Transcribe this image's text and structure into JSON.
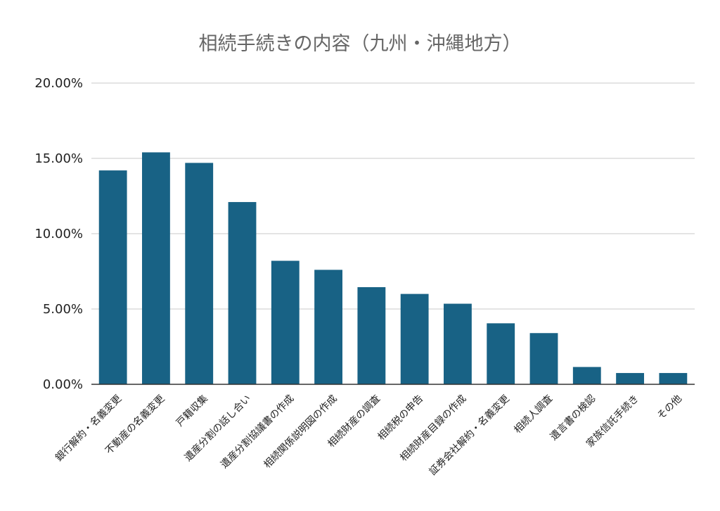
{
  "chart_data": {
    "type": "bar",
    "title": "相続手続きの内容（九州・沖縄地方）",
    "xlabel": "",
    "ylabel": "",
    "categories": [
      "銀行解約・名義変更",
      "不動産の名義変更",
      "戸籍収集",
      "遺産分割の話し合い",
      "遺産分割協議書の作成",
      "相続関係説明図の作成",
      "相続財産の調査",
      "相続税の申告",
      "相続財産目録の作成",
      "証券会社解約・名義変更",
      "相続人調査",
      "遺言書の検認",
      "家族信託手続き",
      "その他"
    ],
    "values": [
      14.2,
      15.4,
      14.7,
      12.1,
      8.2,
      7.6,
      6.45,
      6.0,
      5.35,
      4.05,
      3.4,
      1.15,
      0.75,
      0.75
    ],
    "ylim": [
      0,
      20
    ],
    "yticks": [
      "0.00%",
      "5.00%",
      "10.00%",
      "15.00%",
      "20.00%"
    ],
    "grid": true,
    "bar_color": "#186285",
    "legend": "none"
  }
}
